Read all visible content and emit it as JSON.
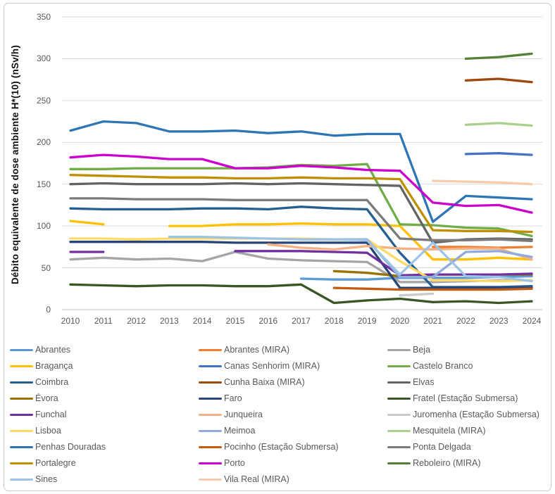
{
  "figure": {
    "y_axis_title": "Débito equivalente de dose ambiente H*(10) (nSv/h)",
    "y_tick_labels": [
      "0",
      "50",
      "100",
      "150",
      "200",
      "250",
      "300",
      "350"
    ],
    "x_tick_labels": [
      "2010",
      "2011",
      "2012",
      "2013",
      "2014",
      "2015",
      "2016",
      "2017",
      "2018",
      "2019",
      "2020",
      "2021",
      "2022",
      "2023",
      "2024"
    ],
    "gridline_color": "#d9d9d9",
    "axis_line_color": "#bfbfbf",
    "tick_label_color": "#595959",
    "border_color": "#c9c9c9"
  },
  "chart_data": {
    "type": "line",
    "title": "",
    "xlabel": "",
    "ylabel": "Débito equivalente de dose ambiente H*(10) (nSv/h)",
    "ylim": [
      0,
      350
    ],
    "y_tick_step": 50,
    "grid": true,
    "legend_position": "bottom",
    "x": [
      2010,
      2011,
      2012,
      2013,
      2014,
      2015,
      2016,
      2017,
      2018,
      2019,
      2020,
      2021,
      2022,
      2023,
      2024
    ],
    "series": [
      {
        "name": "Abrantes",
        "color": "#5B9BD5",
        "values": [
          null,
          null,
          null,
          null,
          null,
          null,
          null,
          37,
          36,
          36,
          38,
          38,
          38,
          39,
          40
        ]
      },
      {
        "name": "Abrantes (MIRA)",
        "color": "#ED7D31",
        "values": [
          null,
          null,
          null,
          null,
          null,
          null,
          null,
          null,
          null,
          null,
          null,
          75,
          75,
          74,
          75
        ]
      },
      {
        "name": "Beja",
        "color": "#A5A5A5",
        "values": [
          60,
          62,
          60,
          61,
          58,
          69,
          61,
          59,
          58,
          57,
          33,
          33,
          34,
          35,
          35
        ]
      },
      {
        "name": "Bragança",
        "color": "#FFC000",
        "values": [
          106,
          102,
          null,
          100,
          100,
          102,
          102,
          103,
          102,
          102,
          100,
          60,
          60,
          62,
          60
        ]
      },
      {
        "name": "Canas Senhorim (MIRA)",
        "color": "#4472C4",
        "values": [
          null,
          null,
          null,
          null,
          null,
          null,
          null,
          null,
          null,
          null,
          null,
          null,
          186,
          187,
          185
        ]
      },
      {
        "name": "Castelo Branco",
        "color": "#70AD47",
        "values": [
          168,
          168,
          169,
          169,
          169,
          169,
          170,
          173,
          172,
          174,
          102,
          101,
          98,
          97,
          88
        ]
      },
      {
        "name": "Coimbra",
        "color": "#255E91",
        "values": [
          121,
          120,
          120,
          120,
          121,
          121,
          120,
          123,
          121,
          120,
          68,
          27,
          27,
          27,
          28
        ]
      },
      {
        "name": "Cunha Baixa (MIRA)",
        "color": "#9E480E",
        "values": [
          null,
          null,
          null,
          null,
          null,
          null,
          null,
          null,
          null,
          null,
          null,
          null,
          274,
          276,
          272
        ]
      },
      {
        "name": "Elvas",
        "color": "#636363",
        "values": [
          150,
          151,
          150,
          150,
          150,
          151,
          150,
          151,
          150,
          149,
          148,
          80,
          84,
          85,
          84
        ]
      },
      {
        "name": "Évora",
        "color": "#997300",
        "values": [
          null,
          null,
          null,
          null,
          null,
          null,
          null,
          null,
          46,
          44,
          40,
          42,
          42,
          42,
          42
        ]
      },
      {
        "name": "Faro",
        "color": "#264478",
        "values": [
          81,
          81,
          81,
          81,
          81,
          80,
          80,
          80,
          80,
          80,
          26,
          26,
          26,
          26,
          26
        ]
      },
      {
        "name": "Fratel (Estação Submersa)",
        "color": "#385723",
        "values": [
          30,
          29,
          28,
          29,
          29,
          28,
          28,
          30,
          8,
          11,
          13,
          9,
          10,
          8,
          10
        ]
      },
      {
        "name": "Funchal",
        "color": "#7030A0",
        "values": [
          69,
          69,
          null,
          null,
          null,
          70,
          70,
          70,
          69,
          68,
          41,
          42,
          42,
          42,
          43
        ]
      },
      {
        "name": "Junqueira",
        "color": "#F4B183",
        "values": [
          null,
          null,
          null,
          null,
          null,
          null,
          78,
          74,
          72,
          76,
          73,
          72,
          73,
          73,
          60
        ]
      },
      {
        "name": "Juromenha (Estação Submersa)",
        "color": "#C9C9C9",
        "values": [
          null,
          null,
          null,
          null,
          null,
          null,
          null,
          null,
          null,
          null,
          17,
          19,
          null,
          null,
          null
        ]
      },
      {
        "name": "Lisboa",
        "color": "#FFD966",
        "values": [
          85,
          85,
          84,
          85,
          85,
          85,
          85,
          85,
          84,
          84,
          58,
          35,
          35,
          34,
          35
        ]
      },
      {
        "name": "Meimoa",
        "color": "#8FAADC",
        "values": [
          null,
          null,
          null,
          null,
          null,
          null,
          null,
          84,
          84,
          84,
          39,
          39,
          69,
          70,
          63
        ]
      },
      {
        "name": "Mesquitela (MIRA)",
        "color": "#A9D18E",
        "values": [
          null,
          null,
          null,
          null,
          null,
          null,
          null,
          null,
          null,
          null,
          null,
          null,
          221,
          223,
          220
        ]
      },
      {
        "name": "Penhas Douradas",
        "color": "#2E75B6",
        "values": [
          214,
          225,
          223,
          213,
          213,
          214,
          211,
          213,
          208,
          210,
          210,
          105,
          136,
          134,
          132
        ]
      },
      {
        "name": "Pocinho (Estação Submersa)",
        "color": "#C55A11",
        "values": [
          null,
          null,
          null,
          null,
          null,
          null,
          null,
          null,
          26,
          25,
          24,
          24,
          24,
          24,
          25
        ]
      },
      {
        "name": "Ponta Delgada",
        "color": "#7B7B7B",
        "values": [
          133,
          133,
          132,
          132,
          132,
          131,
          131,
          131,
          131,
          131,
          85,
          83,
          83,
          84,
          82
        ]
      },
      {
        "name": "Portalegre",
        "color": "#BF8F00",
        "values": [
          161,
          160,
          159,
          158,
          158,
          157,
          157,
          158,
          157,
          157,
          156,
          95,
          94,
          94,
          93
        ]
      },
      {
        "name": "Porto",
        "color": "#CC00CC",
        "values": [
          182,
          185,
          183,
          180,
          180,
          169,
          169,
          172,
          170,
          167,
          166,
          128,
          124,
          125,
          116
        ]
      },
      {
        "name": "Reboleiro (MIRA)",
        "color": "#538135",
        "values": [
          null,
          null,
          null,
          null,
          null,
          null,
          null,
          null,
          null,
          null,
          null,
          null,
          300,
          302,
          306
        ]
      },
      {
        "name": "Sines",
        "color": "#9DC3E6",
        "values": [
          null,
          null,
          null,
          87,
          87,
          86,
          85,
          84,
          84,
          83,
          42,
          80,
          40,
          39,
          34
        ]
      },
      {
        "name": "Vila Real (MIRA)",
        "color": "#F8CBAD",
        "values": [
          null,
          null,
          null,
          null,
          null,
          null,
          null,
          null,
          null,
          null,
          null,
          154,
          153,
          152,
          150
        ]
      }
    ]
  }
}
